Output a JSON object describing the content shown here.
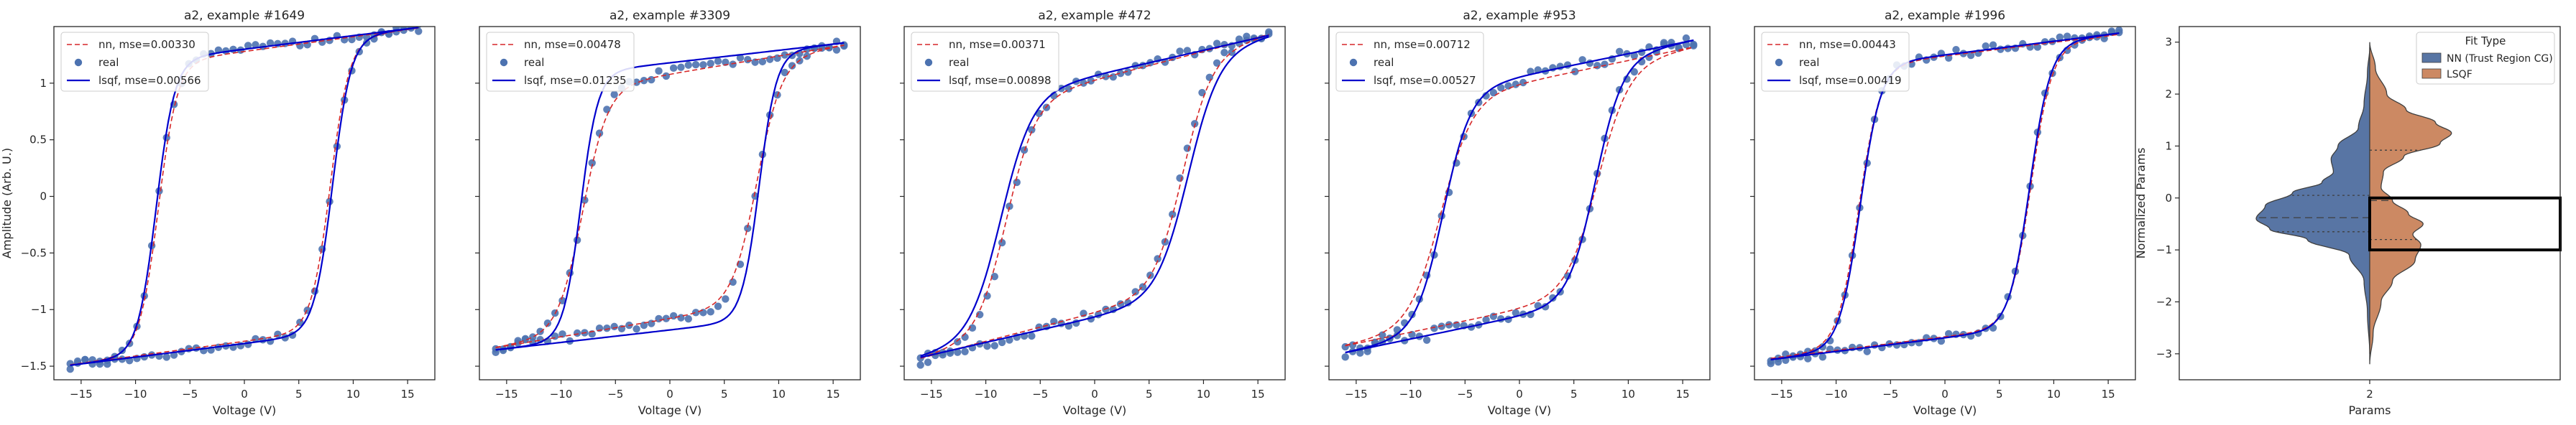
{
  "figure": {
    "background": "#ffffff"
  },
  "chart_data": [
    {
      "type": "scatter",
      "title": "a2, example #1649",
      "xlabel": "Voltage (V)",
      "ylabel": "Amplitude (Arb. U.)",
      "xlim": [
        -17.5,
        17.5
      ],
      "ylim": [
        -1.62,
        1.5
      ],
      "xticks": [
        -15,
        -10,
        -5,
        0,
        5,
        10,
        15
      ],
      "yticks": [
        -1.5,
        -1.0,
        -0.5,
        0.0,
        0.5,
        1.0
      ],
      "show_ytick_labels": true,
      "legend": {
        "position": "top-left",
        "entries": [
          {
            "label": "nn, mse=0.00330",
            "style": "dashed",
            "color": "#d62728"
          },
          {
            "label": "real",
            "style": "marker",
            "color": "#4c72b0"
          },
          {
            "label": "lsqf, mse=0.00566",
            "style": "solid",
            "color": "#0000cc"
          }
        ]
      },
      "loop": {
        "a": 1.3,
        "vc": 8.0,
        "w": 1.8,
        "slope": 0.012
      },
      "series": [
        {
          "name": "nn, mse=0.00330",
          "kind": "nn",
          "color": "#d62728",
          "params": {
            "a": 1.28,
            "vc": 7.9,
            "w": 1.75,
            "slope": 0.013
          }
        },
        {
          "name": "real",
          "kind": "real",
          "color": "#4c72b0",
          "noise": 0.035,
          "seed": 1649
        },
        {
          "name": "lsqf, mse=0.00566",
          "kind": "lsqf",
          "color": "#0000cc",
          "params": {
            "a": 1.3,
            "vc": 8.1,
            "w": 1.7,
            "slope": 0.012
          }
        }
      ]
    },
    {
      "type": "scatter",
      "title": "a2, example #3309",
      "xlabel": "Voltage (V)",
      "ylabel": "",
      "xlim": [
        -17.5,
        17.5
      ],
      "ylim": [
        -1.62,
        1.5
      ],
      "xticks": [
        -15,
        -10,
        -5,
        0,
        5,
        10,
        15
      ],
      "yticks": [
        -1.5,
        -1.0,
        -0.5,
        0.0,
        0.5,
        1.0
      ],
      "show_ytick_labels": false,
      "legend": {
        "position": "top-left",
        "entries": [
          {
            "label": "nn, mse=0.00478",
            "style": "dashed",
            "color": "#d62728"
          },
          {
            "label": "real",
            "style": "marker",
            "color": "#4c72b0"
          },
          {
            "label": "lsqf, mse=0.01235",
            "style": "solid",
            "color": "#0000cc"
          }
        ]
      },
      "loop": {
        "a": 1.1,
        "vc": 8.0,
        "w": 2.2,
        "slope": 0.015
      },
      "series": [
        {
          "name": "nn, mse=0.00478",
          "kind": "nn",
          "color": "#d62728",
          "params": {
            "a": 1.08,
            "vc": 8.0,
            "w": 2.3,
            "slope": 0.016
          }
        },
        {
          "name": "real",
          "kind": "real",
          "color": "#4c72b0",
          "noise": 0.04,
          "seed": 3309
        },
        {
          "name": "lsqf, mse=0.01235",
          "kind": "lsqf",
          "color": "#0000cc",
          "params": {
            "a": 1.18,
            "vc": 8.2,
            "w": 1.6,
            "slope": 0.011
          }
        }
      ]
    },
    {
      "type": "scatter",
      "title": "a2, example #472",
      "xlabel": "Voltage (V)",
      "ylabel": "",
      "xlim": [
        -17.5,
        17.5
      ],
      "ylim": [
        -1.62,
        1.5
      ],
      "xticks": [
        -15,
        -10,
        -5,
        0,
        5,
        10,
        15
      ],
      "yticks": [
        -1.5,
        -1.0,
        -0.5,
        0.0,
        0.5,
        1.0
      ],
      "show_ytick_labels": false,
      "legend": {
        "position": "top-left",
        "entries": [
          {
            "label": "nn, mse=0.00371",
            "style": "dashed",
            "color": "#d62728"
          },
          {
            "label": "real",
            "style": "marker",
            "color": "#4c72b0"
          },
          {
            "label": "lsqf, mse=0.00898",
            "style": "solid",
            "color": "#0000cc"
          }
        ]
      },
      "loop": {
        "a": 1.05,
        "vc": 8.0,
        "w": 2.6,
        "slope": 0.025
      },
      "series": [
        {
          "name": "nn, mse=0.00371",
          "kind": "nn",
          "color": "#d62728",
          "params": {
            "a": 1.03,
            "vc": 8.1,
            "w": 2.7,
            "slope": 0.025
          }
        },
        {
          "name": "real",
          "kind": "real",
          "color": "#4c72b0",
          "noise": 0.04,
          "seed": 472
        },
        {
          "name": "lsqf, mse=0.00898",
          "kind": "lsqf",
          "color": "#0000cc",
          "params": {
            "a": 1.07,
            "vc": 8.6,
            "w": 2.9,
            "slope": 0.022
          }
        }
      ]
    },
    {
      "type": "scatter",
      "title": "a2, example #953",
      "xlabel": "Voltage (V)",
      "ylabel": "",
      "xlim": [
        -17.5,
        17.5
      ],
      "ylim": [
        -1.62,
        1.5
      ],
      "xticks": [
        -15,
        -10,
        -5,
        0,
        5,
        10,
        15
      ],
      "yticks": [
        -1.5,
        -1.0,
        -0.5,
        0.0,
        0.5,
        1.0
      ],
      "show_ytick_labels": false,
      "legend": {
        "position": "top-left",
        "entries": [
          {
            "label": "nn, mse=0.00712",
            "style": "dashed",
            "color": "#d62728"
          },
          {
            "label": "real",
            "style": "marker",
            "color": "#4c72b0"
          },
          {
            "label": "lsqf, mse=0.00527",
            "style": "solid",
            "color": "#0000cc"
          }
        ]
      },
      "loop": {
        "a": 1.05,
        "vc": 7.0,
        "w": 2.6,
        "slope": 0.02
      },
      "series": [
        {
          "name": "nn, mse=0.00712",
          "kind": "nn",
          "color": "#d62728",
          "params": {
            "a": 1.0,
            "vc": 7.2,
            "w": 2.9,
            "slope": 0.02
          }
        },
        {
          "name": "real",
          "kind": "real",
          "color": "#4c72b0",
          "noise": 0.05,
          "seed": 953
        },
        {
          "name": "lsqf, mse=0.00527",
          "kind": "lsqf",
          "color": "#0000cc",
          "params": {
            "a": 1.06,
            "vc": 7.0,
            "w": 2.5,
            "slope": 0.02
          }
        }
      ]
    },
    {
      "type": "scatter",
      "title": "a2, example #1996",
      "xlabel": "Voltage (V)",
      "ylabel": "",
      "xlim": [
        -17.5,
        17.5
      ],
      "ylim": [
        -1.62,
        1.5
      ],
      "xticks": [
        -15,
        -10,
        -5,
        0,
        5,
        10,
        15
      ],
      "yticks": [
        -1.5,
        -1.0,
        -0.5,
        0.0,
        0.5,
        1.0
      ],
      "show_ytick_labels": false,
      "legend": {
        "position": "top-left",
        "entries": [
          {
            "label": "nn, mse=0.00443",
            "style": "dashed",
            "color": "#d62728"
          },
          {
            "label": "real",
            "style": "marker",
            "color": "#4c72b0"
          },
          {
            "label": "lsqf, mse=0.00419",
            "style": "solid",
            "color": "#0000cc"
          }
        ]
      },
      "loop": {
        "a": 1.25,
        "vc": 7.8,
        "w": 1.9,
        "slope": 0.012
      },
      "series": [
        {
          "name": "nn, mse=0.00443",
          "kind": "nn",
          "color": "#d62728",
          "params": {
            "a": 1.24,
            "vc": 7.9,
            "w": 1.95,
            "slope": 0.012
          }
        },
        {
          "name": "real",
          "kind": "real",
          "color": "#4c72b0",
          "noise": 0.035,
          "seed": 1996
        },
        {
          "name": "lsqf, mse=0.00419",
          "kind": "lsqf",
          "color": "#0000cc",
          "params": {
            "a": 1.25,
            "vc": 7.8,
            "w": 1.9,
            "slope": 0.012
          }
        }
      ]
    },
    {
      "type": "violin",
      "title": "",
      "xlabel": "Params",
      "ylabel": "Normalized Params",
      "categories": [
        "2"
      ],
      "ylim": [
        -3.5,
        3.3
      ],
      "yticks": [
        -3,
        -2,
        -1,
        0,
        1,
        2,
        3
      ],
      "legend": {
        "title": "Fit Type",
        "position": "top-right",
        "entries": [
          {
            "label": "NN (Trust Region CG)",
            "color": "#5875a4"
          },
          {
            "label": "LSQF",
            "color": "#cc8963"
          }
        ]
      },
      "series": [
        {
          "name": "NN (Trust Region CG)",
          "side": "left",
          "color": "#5875a4",
          "profile": [
            [
              -3.0,
              0.0
            ],
            [
              -2.2,
              0.02
            ],
            [
              -1.6,
              0.05
            ],
            [
              -1.1,
              0.18
            ],
            [
              -0.8,
              0.55
            ],
            [
              -0.6,
              0.88
            ],
            [
              -0.4,
              1.0
            ],
            [
              -0.15,
              0.92
            ],
            [
              0.1,
              0.68
            ],
            [
              0.3,
              0.42
            ],
            [
              0.5,
              0.32
            ],
            [
              0.75,
              0.34
            ],
            [
              1.0,
              0.28
            ],
            [
              1.35,
              0.1
            ],
            [
              1.8,
              0.05
            ],
            [
              2.4,
              0.02
            ],
            [
              2.9,
              0.0
            ]
          ],
          "quartiles": [
            -0.65,
            -0.38,
            0.05
          ]
        },
        {
          "name": "LSQF",
          "side": "right",
          "color": "#cc8963",
          "profile": [
            [
              -3.2,
              0.0
            ],
            [
              -2.6,
              0.03
            ],
            [
              -2.0,
              0.1
            ],
            [
              -1.6,
              0.2
            ],
            [
              -1.2,
              0.4
            ],
            [
              -0.9,
              0.45
            ],
            [
              -0.7,
              0.38
            ],
            [
              -0.5,
              0.47
            ],
            [
              -0.3,
              0.34
            ],
            [
              -0.05,
              0.2
            ],
            [
              0.2,
              0.1
            ],
            [
              0.5,
              0.12
            ],
            [
              0.8,
              0.3
            ],
            [
              1.05,
              0.62
            ],
            [
              1.25,
              0.72
            ],
            [
              1.45,
              0.58
            ],
            [
              1.7,
              0.32
            ],
            [
              2.0,
              0.15
            ],
            [
              2.5,
              0.05
            ],
            [
              3.0,
              0.0
            ]
          ],
          "quartiles": [
            -0.8,
            -0.05,
            0.92
          ]
        }
      ],
      "highlight_box": {
        "y_range": [
          -1.0,
          0.0
        ],
        "side": "right"
      }
    }
  ]
}
